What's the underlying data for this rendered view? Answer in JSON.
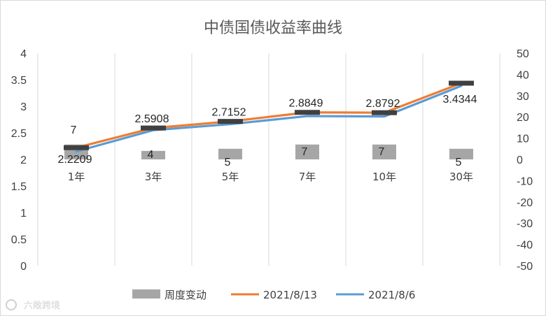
{
  "chart_data": {
    "type": "bar+line",
    "title": "中债国债收益率曲线",
    "categories": [
      "1年",
      "3年",
      "5年",
      "7年",
      "10年",
      "30年"
    ],
    "bar_series": {
      "name": "周度变动",
      "values": [
        7,
        4,
        5,
        7,
        7,
        5
      ],
      "axis": "right",
      "color": "#a6a6a6"
    },
    "line_series": [
      {
        "name": "2021/8/13",
        "values": [
          2.2209,
          2.5908,
          2.7152,
          2.8849,
          2.8792,
          3.4344
        ],
        "axis": "left",
        "color": "#ed7d31"
      },
      {
        "name": "2021/8/6",
        "values": [
          2.15,
          2.55,
          2.664,
          2.815,
          2.808,
          3.384
        ],
        "axis": "left",
        "color": "#5b9bd5"
      }
    ],
    "data_labels": {
      "line": [
        "2.2209",
        "2.5908",
        "2.7152",
        "2.8849",
        "2.8792",
        "3.4344"
      ],
      "bar": [
        "7",
        "4",
        "5",
        "7",
        "7",
        "5"
      ]
    },
    "y_left": {
      "min": 0,
      "max": 4,
      "ticks": [
        "0",
        "0.5",
        "1",
        "1.5",
        "2",
        "2.5",
        "3",
        "3.5",
        "4"
      ]
    },
    "y_right": {
      "min": -50,
      "max": 50,
      "ticks": [
        "-50",
        "-40",
        "-30",
        "-20",
        "-10",
        "0",
        "10",
        "20",
        "30",
        "40",
        "50"
      ]
    },
    "grid": "vertical",
    "legend": "bottom",
    "watermark": "六敞跨境"
  }
}
